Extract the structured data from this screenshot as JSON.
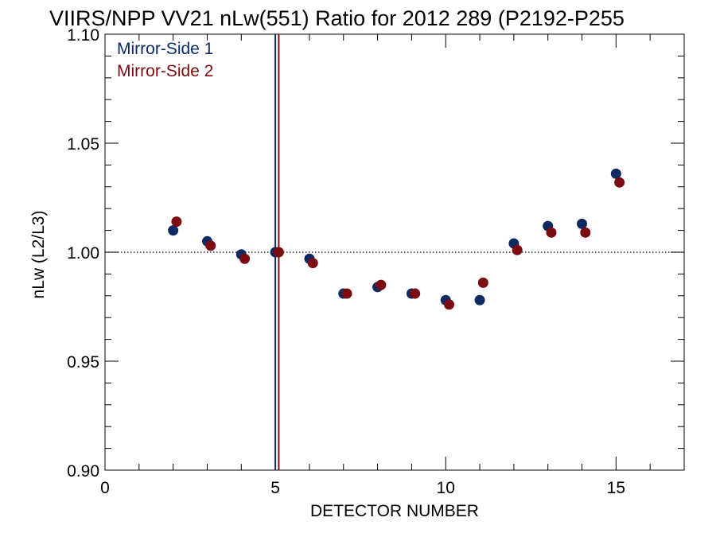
{
  "chart_data": {
    "type": "scatter",
    "title": "VIIRS/NPP VV21 nLw(551) Ratio for 2012 289 (P2192-P255",
    "xlabel": "DETECTOR NUMBER",
    "ylabel": "nLw (L2/L3)",
    "xlim": [
      0,
      17
    ],
    "ylim": [
      0.9,
      1.1
    ],
    "xticks": [
      0,
      5,
      10,
      15
    ],
    "yticks": [
      0.9,
      0.95,
      1.0,
      1.05,
      1.1
    ],
    "xtick_labels": [
      "0",
      "5",
      "10",
      "15"
    ],
    "ytick_labels": [
      "0.90",
      "0.95",
      "1.00",
      "1.05",
      "1.10"
    ],
    "reference_line_y": 1.0,
    "legend_position": "top-left",
    "vertical_lines": [
      {
        "x": 5.0,
        "color": "#0d2a62"
      },
      {
        "x": 5.1,
        "color": "#7a0c12"
      }
    ],
    "series": [
      {
        "name": "Mirror-Side 1",
        "color": "#0d2a62",
        "x": [
          2,
          3,
          4,
          5,
          6,
          7,
          8,
          9,
          10,
          11,
          12,
          13,
          14,
          15
        ],
        "y": [
          1.01,
          1.005,
          0.999,
          1.0,
          0.997,
          0.981,
          0.984,
          0.981,
          0.978,
          0.978,
          1.004,
          1.012,
          1.013,
          1.036
        ]
      },
      {
        "name": "Mirror-Side 2",
        "color": "#7a0c12",
        "x": [
          2.1,
          3.1,
          4.1,
          5.1,
          6.1,
          7.1,
          8.1,
          9.1,
          10.1,
          11.1,
          12.1,
          13.1,
          14.1,
          15.1
        ],
        "y": [
          1.014,
          1.003,
          0.997,
          1.0,
          0.995,
          0.981,
          0.985,
          0.981,
          0.976,
          0.986,
          1.001,
          1.009,
          1.009,
          1.032
        ]
      }
    ]
  }
}
